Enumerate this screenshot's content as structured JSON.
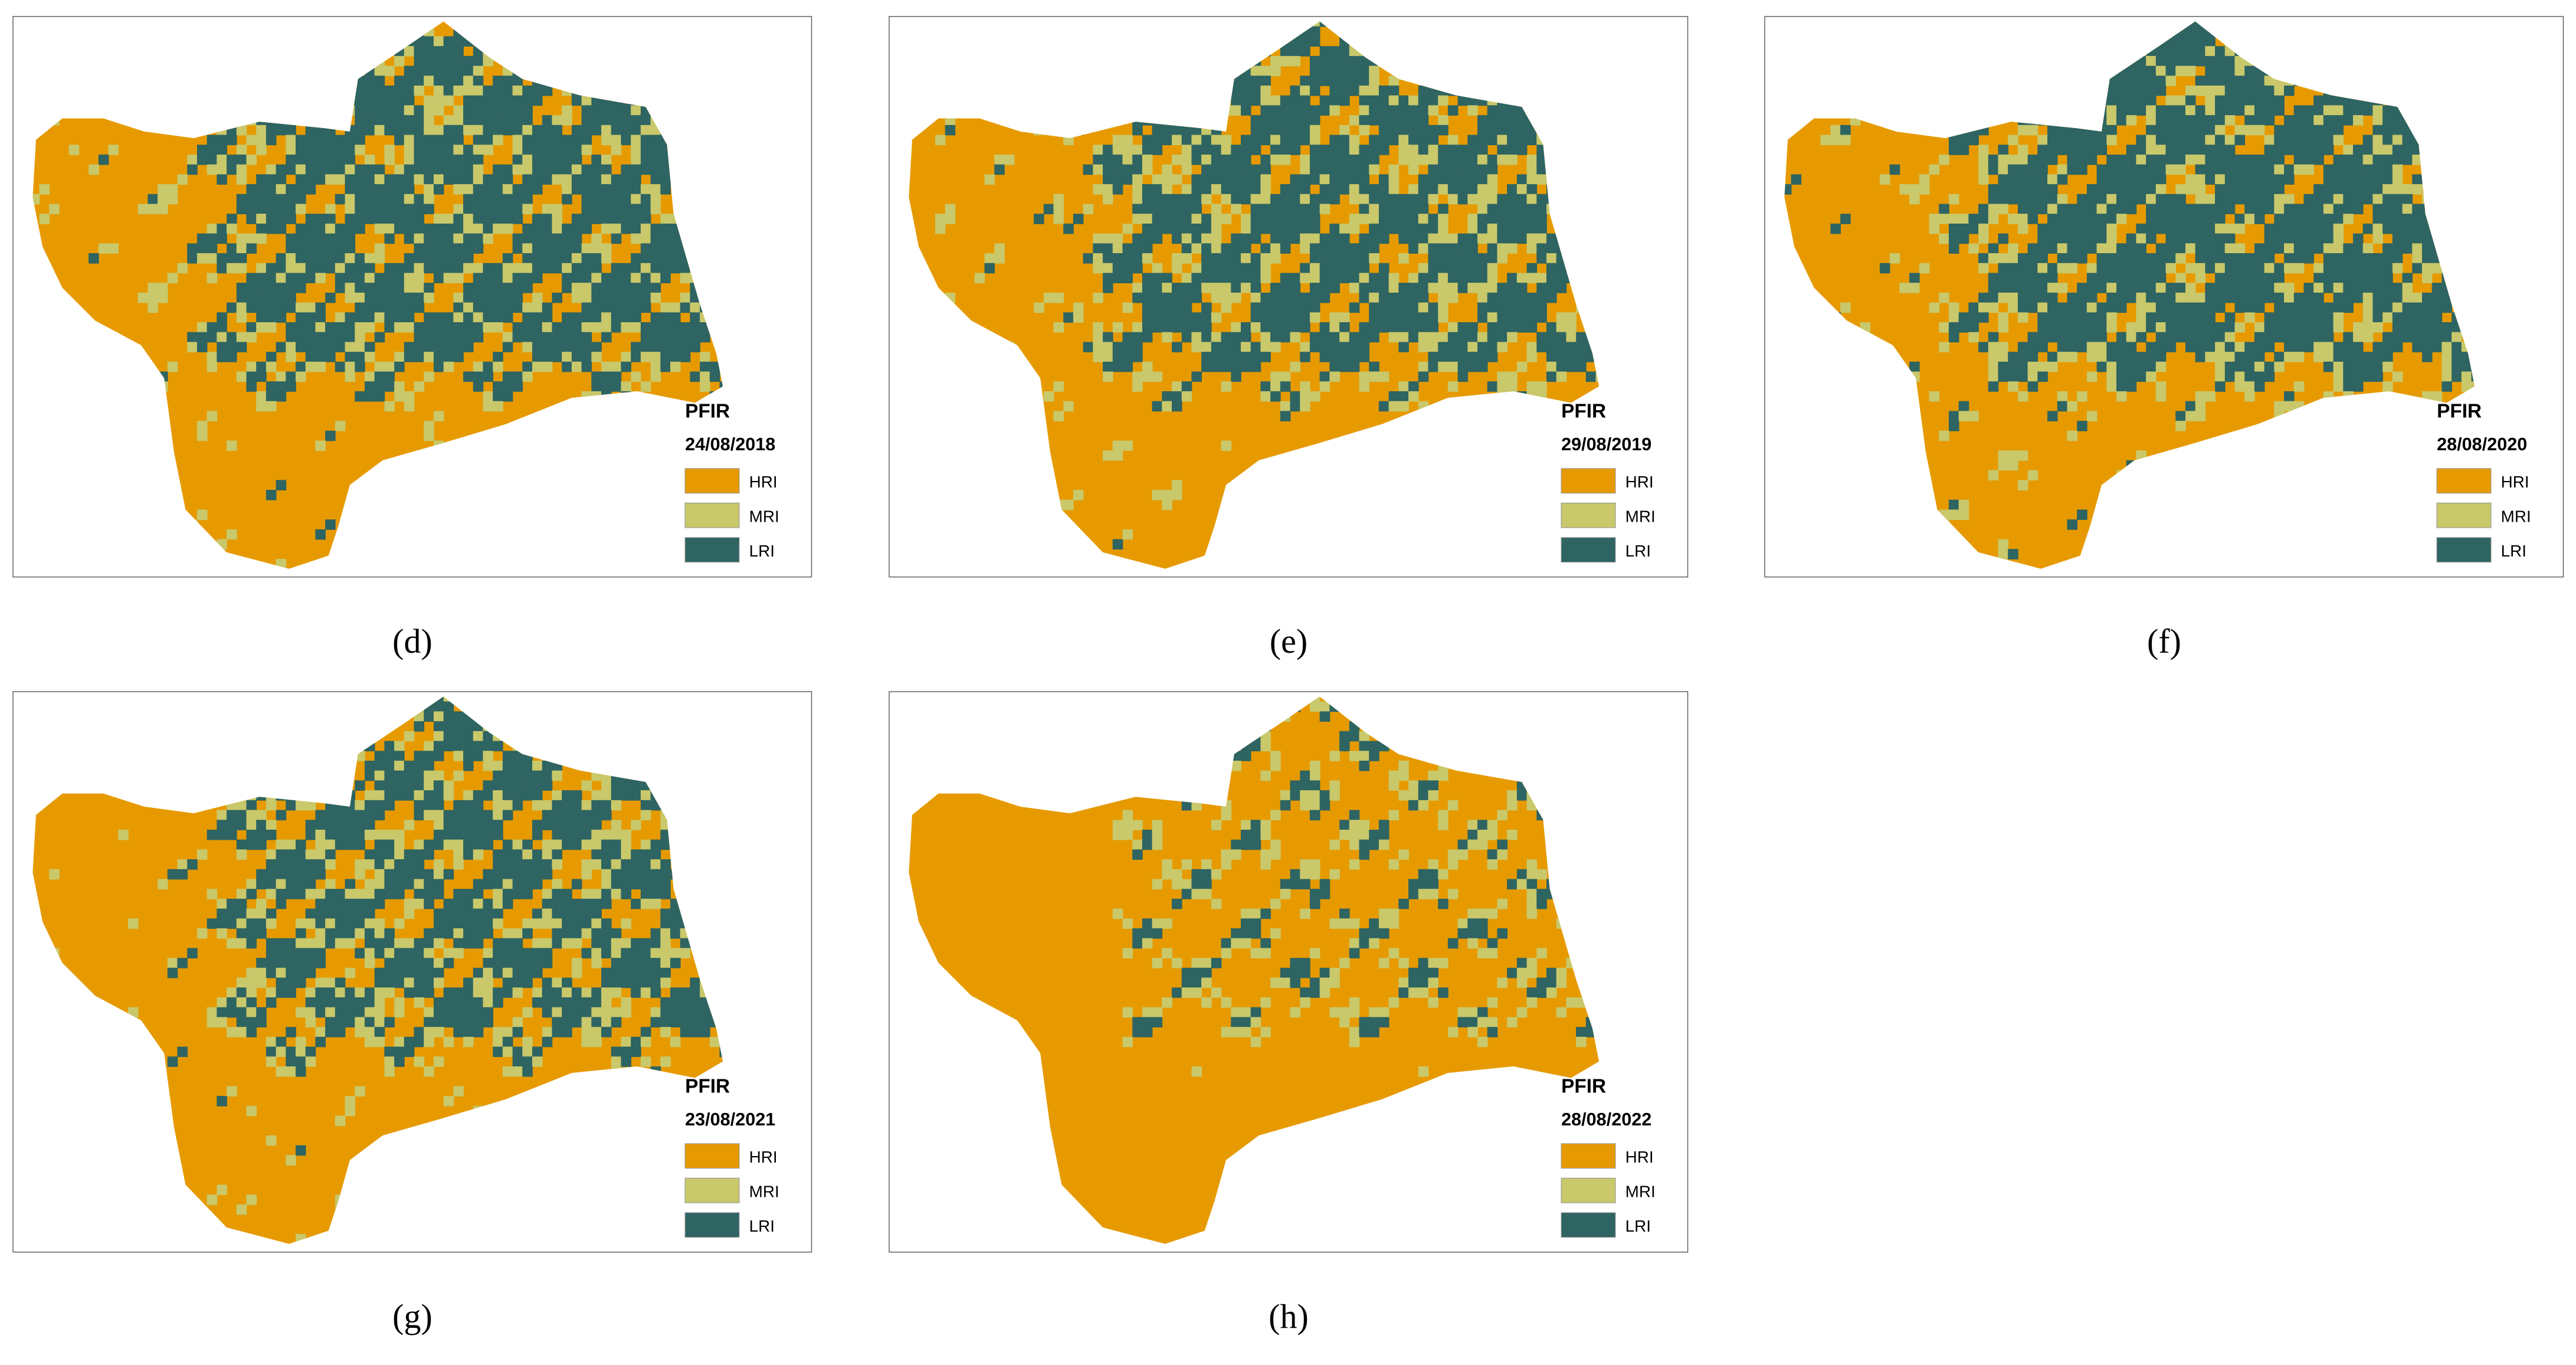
{
  "panels": [
    {
      "label": "(d)",
      "title": "PFIR",
      "date": "24/08/2018",
      "legend": [
        {
          "name": "HRI",
          "color": "#E69A00"
        },
        {
          "name": "MRI",
          "color": "#C9C86A"
        },
        {
          "name": "LRI",
          "color": "#2E6462"
        }
      ]
    },
    {
      "label": "(e)",
      "title": "PFIR",
      "date": "29/08/2019",
      "legend": [
        {
          "name": "HRI",
          "color": "#E69A00"
        },
        {
          "name": "MRI",
          "color": "#C9C86A"
        },
        {
          "name": "LRI",
          "color": "#2E6462"
        }
      ]
    },
    {
      "label": "(f)",
      "title": "PFIR",
      "date": "28/08/2020",
      "legend": [
        {
          "name": "HRI",
          "color": "#E69A00"
        },
        {
          "name": "MRI",
          "color": "#C9C86A"
        },
        {
          "name": "LRI",
          "color": "#2E6462"
        }
      ]
    },
    {
      "label": "(g)",
      "title": "PFIR",
      "date": "23/08/2021",
      "legend": [
        {
          "name": "HRI",
          "color": "#E69A00"
        },
        {
          "name": "MRI",
          "color": "#C9C86A"
        },
        {
          "name": "LRI",
          "color": "#2E6462"
        }
      ]
    },
    {
      "label": "(h)",
      "title": "PFIR",
      "date": "28/08/2022",
      "legend": [
        {
          "name": "HRI",
          "color": "#E69A00"
        },
        {
          "name": "MRI",
          "color": "#C9C86A"
        },
        {
          "name": "LRI",
          "color": "#2E6462"
        }
      ]
    }
  ]
}
